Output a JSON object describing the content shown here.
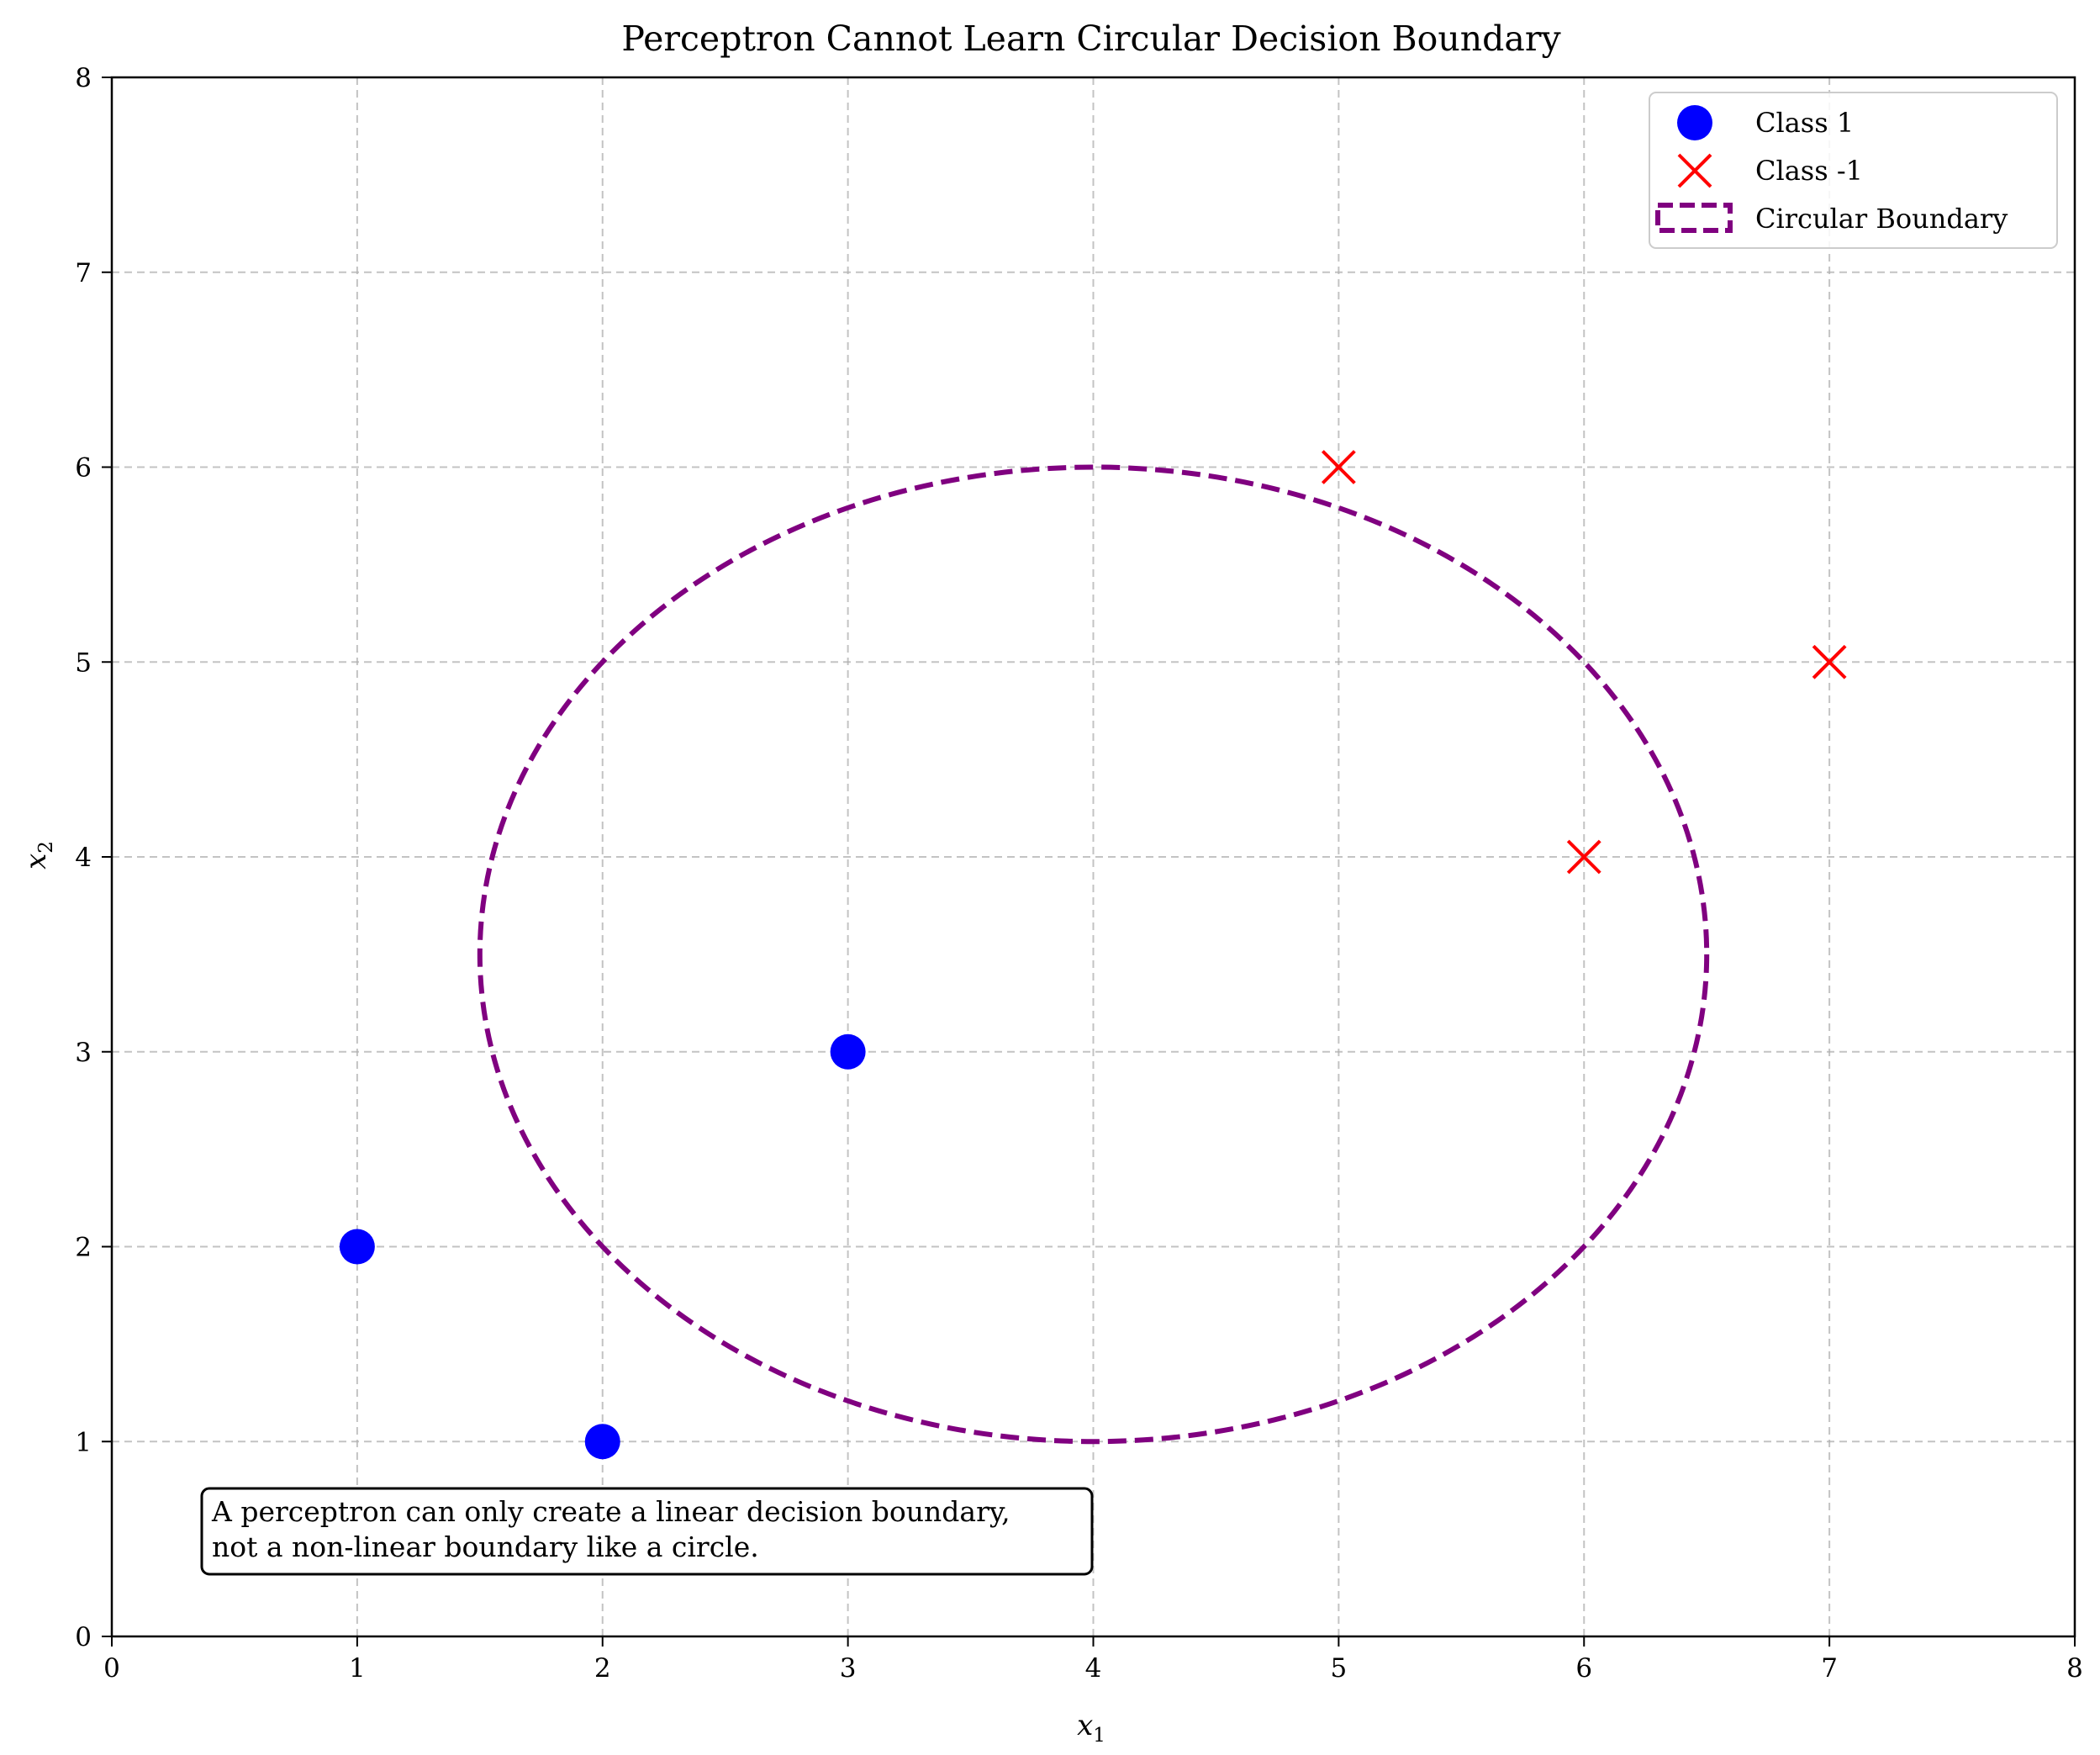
{
  "chart_data": {
    "type": "scatter",
    "title": "Perceptron Cannot Learn Circular Decision Boundary",
    "xlabel": "x",
    "xlabel_sub": "1",
    "ylabel": "x",
    "ylabel_sub": "2",
    "xlim": [
      0,
      8
    ],
    "ylim": [
      0,
      8
    ],
    "xticks": [
      0,
      1,
      2,
      3,
      4,
      5,
      6,
      7,
      8
    ],
    "yticks": [
      0,
      1,
      2,
      3,
      4,
      5,
      6,
      7,
      8
    ],
    "grid": true,
    "legend_position": "top-right",
    "series": [
      {
        "name": "Class 1",
        "marker": "circle",
        "color": "#0000ff",
        "points": [
          [
            1,
            2
          ],
          [
            2,
            1
          ],
          [
            3,
            3
          ]
        ]
      },
      {
        "name": "Class -1",
        "marker": "x",
        "color": "#ff0000",
        "points": [
          [
            5,
            6
          ],
          [
            6,
            4
          ],
          [
            7,
            5
          ]
        ]
      }
    ],
    "boundary": {
      "name": "Circular Boundary",
      "shape": "ellipse",
      "center": [
        4,
        3.5
      ],
      "radius_x": 2.5,
      "radius_y": 2.5,
      "color": "#800080",
      "style": "dashed"
    },
    "annotation": {
      "line1": "A perceptron can only create a linear decision boundary,",
      "line2": "not a non-linear boundary like a circle."
    }
  }
}
